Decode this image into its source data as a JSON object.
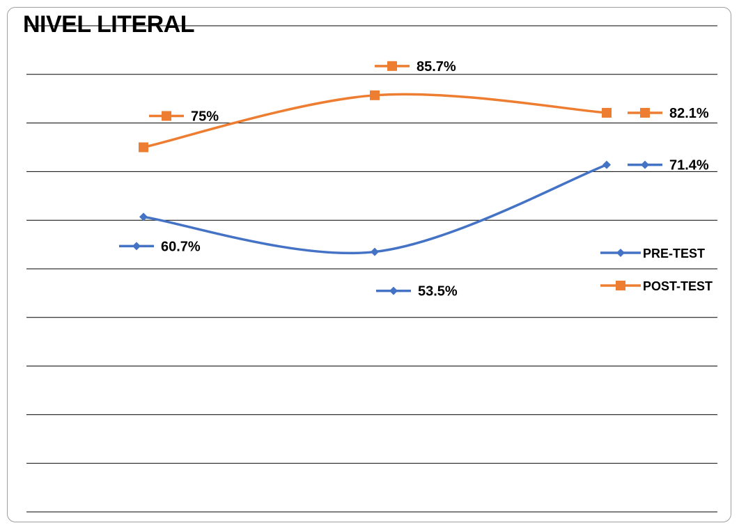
{
  "chart_data": {
    "type": "line",
    "title": "NIVEL LITERAL",
    "categories": [
      "",
      "",
      ""
    ],
    "series": [
      {
        "name": "PRE-TEST",
        "values": [
          60.7,
          53.5,
          71.4
        ],
        "labels": [
          "60.7%",
          "53.5%",
          "71.4%"
        ],
        "color": "#4472C4",
        "marker": "diamond"
      },
      {
        "name": "POST-TEST",
        "values": [
          75,
          85.7,
          82.1
        ],
        "labels": [
          "75%",
          "85.7%",
          "82.1%"
        ],
        "color": "#ED7D31",
        "marker": "square"
      }
    ],
    "ylim": [
      0,
      100
    ],
    "grid": true,
    "smooth": true,
    "legend": "right"
  }
}
